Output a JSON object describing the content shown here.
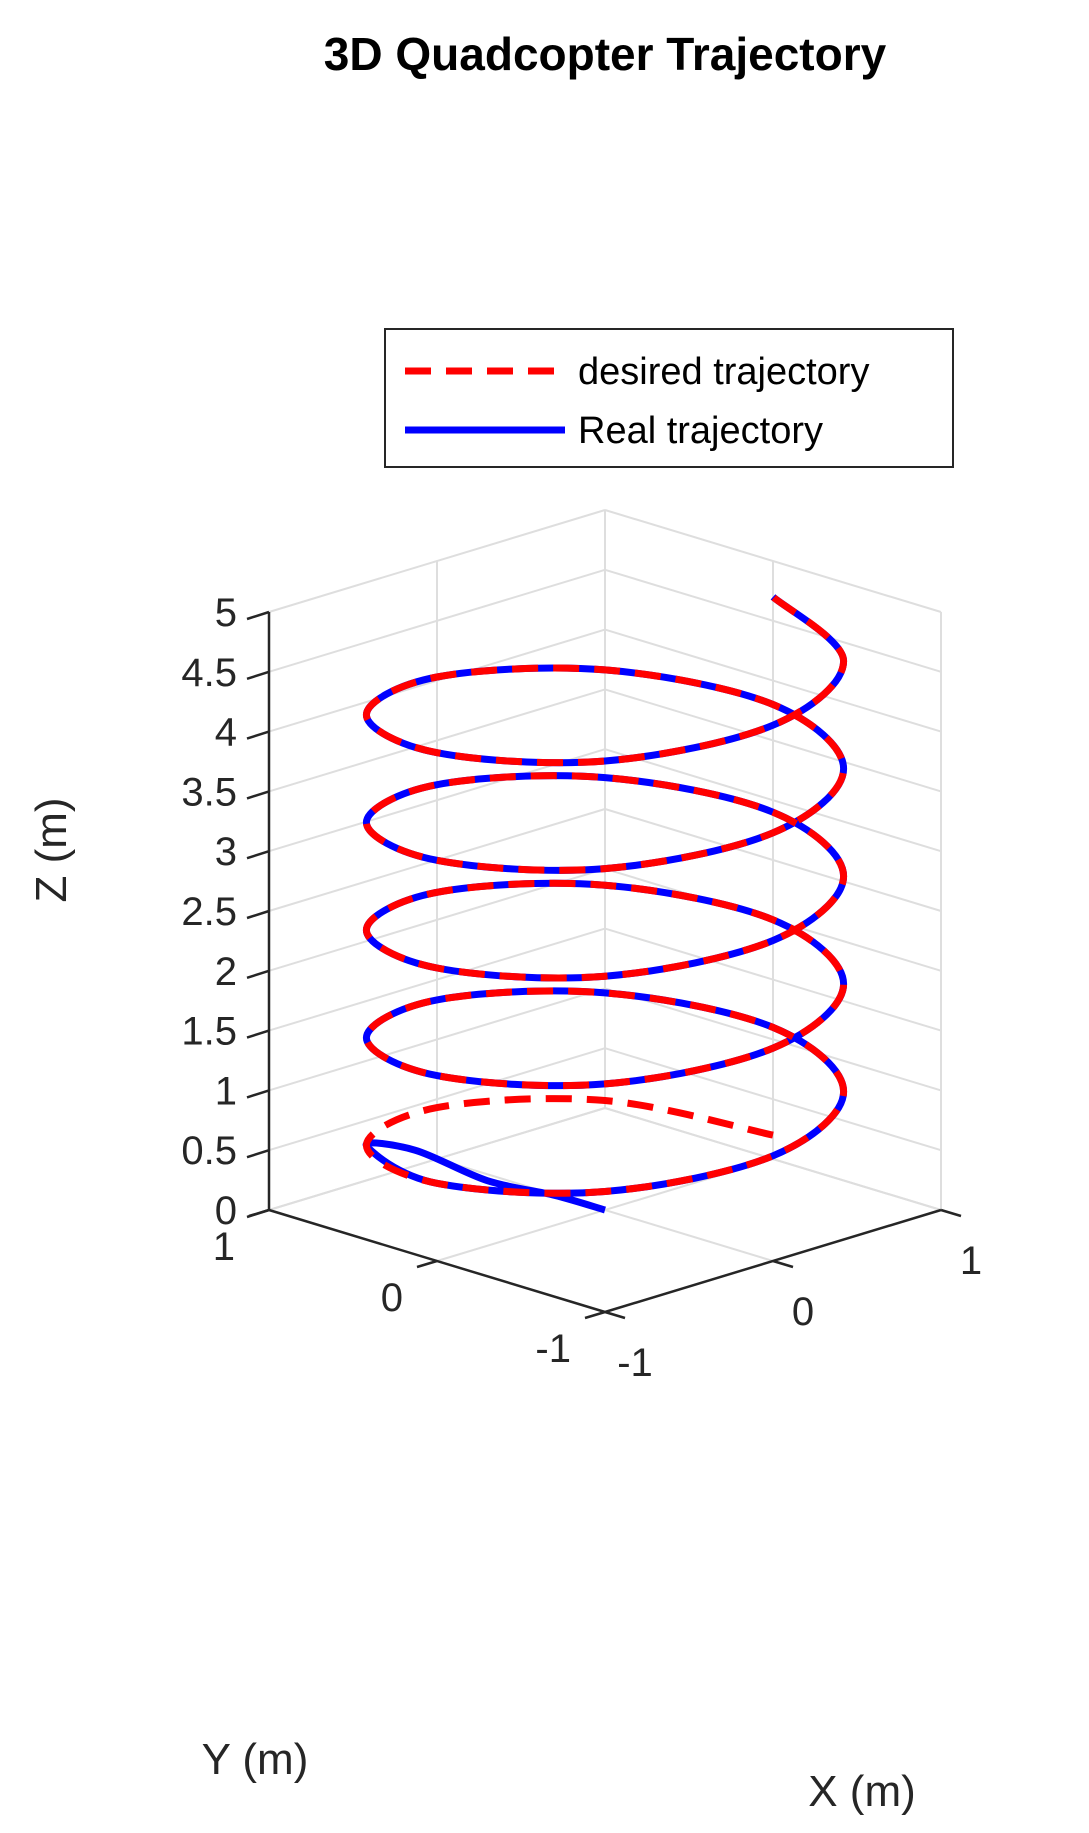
{
  "chart_data": {
    "type": "line",
    "projection": "3d",
    "title": "3D Quadcopter Trajectory",
    "xlabel": "X (m)",
    "ylabel": "Y (m)",
    "zlabel": "Z (m)",
    "xlim": [
      -1,
      1
    ],
    "ylim": [
      -1,
      1
    ],
    "zlim": [
      0,
      5
    ],
    "x_ticks": [
      "-1",
      "0",
      "1"
    ],
    "y_ticks": [
      "-1",
      "0",
      "1"
    ],
    "z_ticks": [
      "0",
      "0.5",
      "1",
      "1.5",
      "2",
      "2.5",
      "3",
      "3.5",
      "4",
      "4.5",
      "5"
    ],
    "grid": true,
    "legend_position": "top-right",
    "series": [
      {
        "name": "desired trajectory",
        "color": "#ff0000",
        "style": "dashed",
        "points": [
          [
            1.0,
            0.0,
            0.2
          ],
          [
            0.71,
            0.71,
            0.31
          ],
          [
            0.0,
            1.0,
            0.43
          ],
          [
            -0.71,
            0.71,
            0.54
          ],
          [
            -1.0,
            0.0,
            0.65
          ],
          [
            -0.71,
            -0.71,
            0.76
          ],
          [
            0.0,
            -1.0,
            0.88
          ],
          [
            0.71,
            -0.71,
            0.99
          ],
          [
            1.0,
            0.0,
            1.1
          ],
          [
            0.71,
            0.71,
            1.21
          ],
          [
            0.0,
            1.0,
            1.33
          ],
          [
            -0.71,
            0.71,
            1.44
          ],
          [
            -1.0,
            0.0,
            1.55
          ],
          [
            -0.71,
            -0.71,
            1.66
          ],
          [
            0.0,
            -1.0,
            1.78
          ],
          [
            0.71,
            -0.71,
            1.89
          ],
          [
            1.0,
            0.0,
            2.0
          ],
          [
            0.71,
            0.71,
            2.11
          ],
          [
            0.0,
            1.0,
            2.23
          ],
          [
            -0.71,
            0.71,
            2.34
          ],
          [
            -1.0,
            0.0,
            2.45
          ],
          [
            -0.71,
            -0.71,
            2.56
          ],
          [
            0.0,
            -1.0,
            2.68
          ],
          [
            0.71,
            -0.71,
            2.79
          ],
          [
            1.0,
            0.0,
            2.9
          ],
          [
            0.71,
            0.71,
            3.01
          ],
          [
            0.0,
            1.0,
            3.13
          ],
          [
            -0.71,
            0.71,
            3.24
          ],
          [
            -1.0,
            0.0,
            3.35
          ],
          [
            -0.71,
            -0.71,
            3.46
          ],
          [
            0.0,
            -1.0,
            3.58
          ],
          [
            0.71,
            -0.71,
            3.69
          ],
          [
            1.0,
            0.0,
            3.8
          ],
          [
            0.71,
            0.71,
            3.91
          ],
          [
            0.0,
            1.0,
            4.03
          ],
          [
            -0.71,
            0.71,
            4.14
          ],
          [
            -1.0,
            0.0,
            4.25
          ],
          [
            -0.71,
            -0.71,
            4.36
          ],
          [
            0.0,
            -1.0,
            4.48
          ],
          [
            0.71,
            -0.71,
            4.59
          ],
          [
            1.0,
            0.0,
            4.7
          ]
        ]
      },
      {
        "name": "Real trajectory",
        "color": "#0000ff",
        "style": "solid",
        "points": [
          [
            0.0,
            0.0,
            0.0
          ],
          [
            -0.1,
            0.2,
            0.08
          ],
          [
            -0.25,
            0.45,
            0.16
          ],
          [
            -0.33,
            0.8,
            0.3
          ],
          [
            -0.71,
            0.71,
            0.54
          ],
          [
            -1.0,
            0.0,
            0.65
          ],
          [
            -0.71,
            -0.71,
            0.76
          ],
          [
            0.0,
            -1.0,
            0.88
          ],
          [
            0.71,
            -0.71,
            0.99
          ],
          [
            1.0,
            0.0,
            1.1
          ],
          [
            0.71,
            0.71,
            1.21
          ],
          [
            0.0,
            1.0,
            1.33
          ],
          [
            -0.71,
            0.71,
            1.44
          ],
          [
            -1.0,
            0.0,
            1.55
          ],
          [
            -0.71,
            -0.71,
            1.66
          ],
          [
            0.0,
            -1.0,
            1.78
          ],
          [
            0.71,
            -0.71,
            1.89
          ],
          [
            1.0,
            0.0,
            2.0
          ],
          [
            0.71,
            0.71,
            2.11
          ],
          [
            0.0,
            1.0,
            2.23
          ],
          [
            -0.71,
            0.71,
            2.34
          ],
          [
            -1.0,
            0.0,
            2.45
          ],
          [
            -0.71,
            -0.71,
            2.56
          ],
          [
            0.0,
            -1.0,
            2.68
          ],
          [
            0.71,
            -0.71,
            2.79
          ],
          [
            1.0,
            0.0,
            2.9
          ],
          [
            0.71,
            0.71,
            3.01
          ],
          [
            0.0,
            1.0,
            3.13
          ],
          [
            -0.71,
            0.71,
            3.24
          ],
          [
            -1.0,
            0.0,
            3.35
          ],
          [
            -0.71,
            -0.71,
            3.46
          ],
          [
            0.0,
            -1.0,
            3.58
          ],
          [
            0.71,
            -0.71,
            3.69
          ],
          [
            1.0,
            0.0,
            3.8
          ],
          [
            0.71,
            0.71,
            3.91
          ],
          [
            0.0,
            1.0,
            4.03
          ],
          [
            -0.71,
            0.71,
            4.14
          ],
          [
            -1.0,
            0.0,
            4.25
          ],
          [
            -0.71,
            -0.71,
            4.36
          ],
          [
            0.0,
            -1.0,
            4.48
          ],
          [
            0.71,
            -0.71,
            4.59
          ],
          [
            1.0,
            0.0,
            4.7
          ]
        ]
      }
    ]
  }
}
